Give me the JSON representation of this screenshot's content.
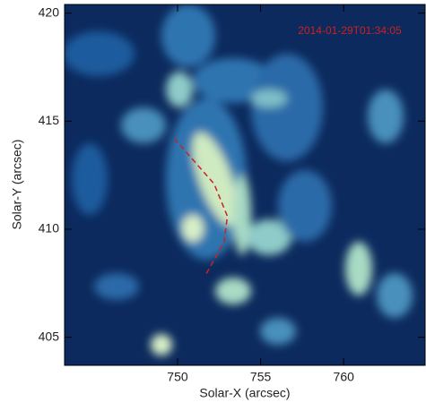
{
  "chart_data": {
    "type": "image",
    "annotation": "2014-01-29T01:34:05",
    "x_label": "Solar-X (arcsec)",
    "y_label": "Solar-Y (arcsec)",
    "xlim": [
      743.2,
      764.9
    ],
    "ylim": [
      403.7,
      420.4
    ],
    "xticks": [
      750,
      755,
      760
    ],
    "yticks": [
      405,
      410,
      415,
      420
    ],
    "curve": {
      "color": "#cc2222",
      "x": [
        749.8,
        750.6,
        752.2,
        753.0,
        752.8,
        751.7
      ],
      "y": [
        414.2,
        413.5,
        412.1,
        410.6,
        409.4,
        407.9
      ]
    }
  }
}
